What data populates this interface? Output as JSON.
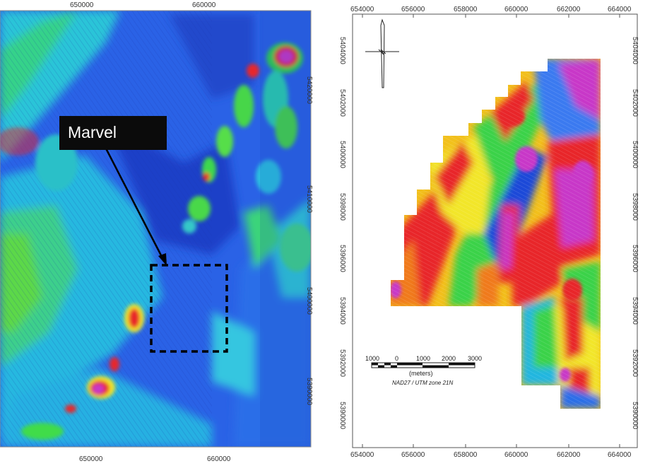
{
  "left_map": {
    "top_ticks": [
      "650000",
      "660000"
    ],
    "bottom_ticks": [
      "650000",
      "660000"
    ],
    "right_ticks": [
      "5420000",
      "5410000",
      "5400000",
      "5390000"
    ],
    "callout_label": "Marvel"
  },
  "right_map": {
    "x_ticks": [
      "654000",
      "656000",
      "658000",
      "660000",
      "662000",
      "664000"
    ],
    "y_ticks": [
      "5404000",
      "5402000",
      "5400000",
      "5398000",
      "5396000",
      "5394000",
      "5392000",
      "5390000"
    ],
    "scale_bar": {
      "ticks": [
        "1000",
        "0",
        "1000",
        "2000",
        "3000"
      ],
      "unit": "(meters)",
      "datum": "NAD27 / UTM zone 21N"
    }
  },
  "colors": {
    "deep_blue": "#1f3fd0",
    "blue": "#2f6ef0",
    "cyan": "#20c8e8",
    "green": "#3fdc4a",
    "yellow": "#f2e62a",
    "red": "#e8262a",
    "magenta": "#c838c8"
  }
}
